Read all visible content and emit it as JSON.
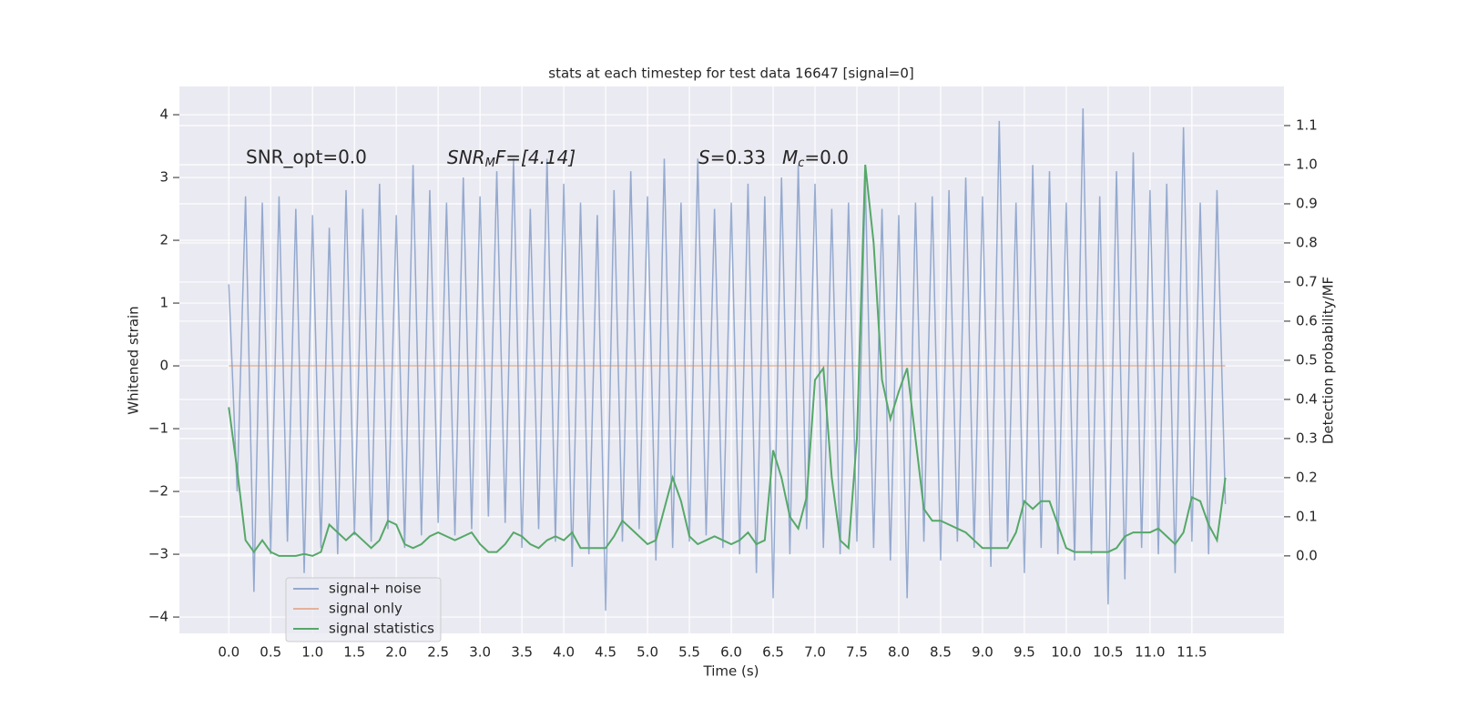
{
  "chart_data": {
    "type": "line",
    "title": "stats at each timestep for test data 16647 [signal=0]",
    "x_label": "Time (s)",
    "y_label": "Whitened strain",
    "y2_label": "Detection probability/MF",
    "annotations": {
      "snr_opt": "SNR_opt=0.0",
      "snr_mf": {
        "base": "SNR",
        "sub": "M",
        "tail": "F=[4.14]"
      },
      "s": {
        "base": "S",
        "tail": "=0.33"
      },
      "mc": {
        "base": "M",
        "sub": "c",
        "tail": "=0.0"
      }
    },
    "x": [
      0.0,
      0.1,
      0.2,
      0.3,
      0.4,
      0.5,
      0.6,
      0.7,
      0.8,
      0.9,
      1.0,
      1.1,
      1.2,
      1.3,
      1.4,
      1.5,
      1.6,
      1.7,
      1.8,
      1.9,
      2.0,
      2.1,
      2.2,
      2.3,
      2.4,
      2.5,
      2.6,
      2.7,
      2.8,
      2.9,
      3.0,
      3.1,
      3.2,
      3.3,
      3.4,
      3.5,
      3.6,
      3.7,
      3.8,
      3.9,
      4.0,
      4.1,
      4.2,
      4.3,
      4.4,
      4.5,
      4.6,
      4.7,
      4.8,
      4.9,
      5.0,
      5.1,
      5.2,
      5.3,
      5.4,
      5.5,
      5.6,
      5.7,
      5.8,
      5.9,
      6.0,
      6.1,
      6.2,
      6.3,
      6.4,
      6.5,
      6.6,
      6.7,
      6.8,
      6.9,
      7.0,
      7.1,
      7.2,
      7.3,
      7.4,
      7.5,
      7.6,
      7.7,
      7.8,
      7.9,
      8.0,
      8.1,
      8.2,
      8.3,
      8.4,
      8.5,
      8.6,
      8.7,
      8.8,
      8.9,
      9.0,
      9.1,
      9.2,
      9.3,
      9.4,
      9.5,
      9.6,
      9.7,
      9.8,
      9.9,
      10.0,
      10.1,
      10.2,
      10.3,
      10.4,
      10.5,
      10.6,
      10.7,
      10.8,
      10.9,
      11.0,
      11.1,
      11.2,
      11.3,
      11.4,
      11.5,
      11.6,
      11.7,
      11.8,
      11.9
    ],
    "series": [
      {
        "name": "signal+ noise",
        "color": "#4c72b0",
        "axis": "y",
        "values": [
          1.3,
          -2.0,
          2.7,
          -3.6,
          2.6,
          -3.0,
          2.7,
          -2.8,
          2.5,
          -3.3,
          2.4,
          -2.9,
          2.2,
          -3.0,
          2.8,
          -2.7,
          2.5,
          -2.8,
          2.9,
          -2.6,
          2.4,
          -2.9,
          3.2,
          -2.7,
          2.8,
          -2.5,
          2.6,
          -2.7,
          3.0,
          -2.6,
          2.7,
          -2.4,
          3.1,
          -2.5,
          3.3,
          -2.9,
          2.5,
          -2.6,
          3.3,
          -2.8,
          2.9,
          -3.2,
          2.6,
          -3.0,
          2.4,
          -3.9,
          2.8,
          -2.8,
          3.1,
          -2.6,
          2.7,
          -3.1,
          3.3,
          -2.9,
          2.6,
          -2.8,
          3.3,
          -2.7,
          2.5,
          -2.9,
          2.6,
          -3.0,
          2.9,
          -3.3,
          2.7,
          -3.7,
          3.0,
          -3.0,
          3.2,
          -2.6,
          2.9,
          -2.9,
          2.5,
          -3.0,
          2.6,
          -2.8,
          3.0,
          -2.9,
          2.5,
          -3.1,
          2.4,
          -3.7,
          2.6,
          -2.8,
          2.7,
          -3.1,
          2.8,
          -2.8,
          3.0,
          -2.9,
          2.7,
          -3.2,
          3.9,
          -2.8,
          2.6,
          -3.3,
          3.2,
          -2.9,
          3.1,
          -3.0,
          2.6,
          -3.1,
          4.1,
          -3.0,
          2.7,
          -3.8,
          3.1,
          -3.4,
          3.4,
          -2.9,
          2.8,
          -3.0,
          2.9,
          -3.3,
          3.8,
          -2.8,
          2.6,
          -3.0,
          2.8,
          -2.2
        ]
      },
      {
        "name": "signal only",
        "color": "#dd8452",
        "axis": "y",
        "values": [
          0,
          0,
          0,
          0,
          0,
          0,
          0,
          0,
          0,
          0,
          0,
          0,
          0,
          0,
          0,
          0,
          0,
          0,
          0,
          0,
          0,
          0,
          0,
          0,
          0,
          0,
          0,
          0,
          0,
          0,
          0,
          0,
          0,
          0,
          0,
          0,
          0,
          0,
          0,
          0,
          0,
          0,
          0,
          0,
          0,
          0,
          0,
          0,
          0,
          0,
          0,
          0,
          0,
          0,
          0,
          0,
          0,
          0,
          0,
          0,
          0,
          0,
          0,
          0,
          0,
          0,
          0,
          0,
          0,
          0,
          0,
          0,
          0,
          0,
          0,
          0,
          0,
          0,
          0,
          0,
          0,
          0,
          0,
          0,
          0,
          0,
          0,
          0,
          0,
          0,
          0,
          0,
          0,
          0,
          0,
          0,
          0,
          0,
          0,
          0,
          0,
          0,
          0,
          0,
          0,
          0,
          0,
          0,
          0,
          0,
          0,
          0,
          0,
          0,
          0,
          0,
          0,
          0,
          0,
          0
        ]
      },
      {
        "name": "signal statistics",
        "color": "#55a868",
        "axis": "y2",
        "values": [
          0.38,
          0.22,
          0.04,
          0.01,
          0.04,
          0.01,
          0.0,
          0.0,
          0.0,
          0.005,
          0.0,
          0.01,
          0.08,
          0.06,
          0.04,
          0.06,
          0.04,
          0.02,
          0.04,
          0.09,
          0.08,
          0.03,
          0.02,
          0.03,
          0.05,
          0.06,
          0.05,
          0.04,
          0.05,
          0.06,
          0.03,
          0.01,
          0.01,
          0.03,
          0.06,
          0.05,
          0.03,
          0.02,
          0.04,
          0.05,
          0.04,
          0.06,
          0.02,
          0.02,
          0.02,
          0.02,
          0.05,
          0.09,
          0.07,
          0.05,
          0.03,
          0.04,
          0.12,
          0.2,
          0.14,
          0.05,
          0.03,
          0.04,
          0.05,
          0.04,
          0.03,
          0.04,
          0.06,
          0.03,
          0.04,
          0.27,
          0.2,
          0.1,
          0.07,
          0.15,
          0.45,
          0.48,
          0.2,
          0.04,
          0.02,
          0.3,
          1.0,
          0.8,
          0.45,
          0.35,
          0.42,
          0.48,
          0.3,
          0.12,
          0.09,
          0.09,
          0.08,
          0.07,
          0.06,
          0.04,
          0.02,
          0.02,
          0.02,
          0.02,
          0.06,
          0.14,
          0.12,
          0.14,
          0.14,
          0.08,
          0.02,
          0.01,
          0.01,
          0.01,
          0.01,
          0.01,
          0.02,
          0.05,
          0.06,
          0.06,
          0.06,
          0.07,
          0.05,
          0.03,
          0.06,
          0.15,
          0.14,
          0.08,
          0.04,
          0.2
        ]
      }
    ],
    "xlim": [
      -0.59,
      12.6
    ],
    "xticks": [
      {
        "value": 0,
        "label": "0.0"
      },
      0.5,
      {
        "value": 1,
        "label": "1.0"
      },
      1.5,
      {
        "value": 2,
        "label": "2.0"
      },
      2.5,
      {
        "value": 3,
        "label": "3.0"
      },
      3.5,
      {
        "value": 4,
        "label": "4.0"
      },
      4.5,
      {
        "value": 5,
        "label": "5.0"
      },
      5.5,
      {
        "value": 6,
        "label": "6.0"
      },
      6.5,
      {
        "value": 7,
        "label": "7.0"
      },
      7.5,
      {
        "value": 8,
        "label": "8.0"
      },
      8.5,
      {
        "value": 9,
        "label": "9.0"
      },
      9.5,
      {
        "value": 10,
        "label": "10.0"
      },
      10.5,
      {
        "value": 11,
        "label": "11.0"
      },
      11.5
    ],
    "ylim": [
      -4.26,
      4.45
    ],
    "yticks": [
      {
        "value": -4,
        "label": "−4"
      },
      {
        "value": -3,
        "label": "−3"
      },
      {
        "value": -2,
        "label": "−2"
      },
      {
        "value": -1,
        "label": "−1"
      },
      0,
      1,
      2,
      3,
      4
    ],
    "y2lim": [
      -0.198,
      1.2
    ],
    "y2ticks": [
      {
        "value": 0,
        "label": "0.0"
      },
      0.1,
      0.2,
      0.3,
      0.4,
      0.5,
      0.6,
      0.7,
      0.8,
      0.9,
      {
        "value": 1,
        "label": "1.0"
      },
      1.1
    ],
    "grid": true,
    "legend": "lower left",
    "background": "#eaeaf2"
  }
}
